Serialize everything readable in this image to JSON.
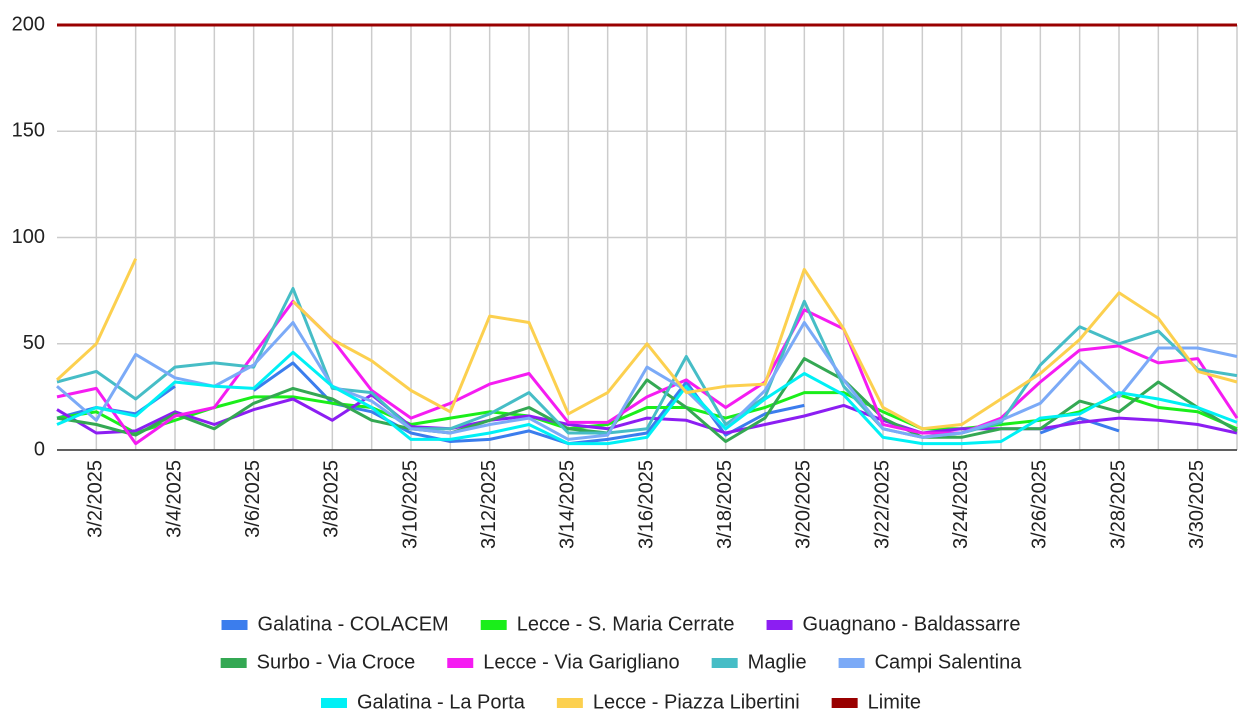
{
  "chart_data": {
    "type": "line",
    "categories": [
      null,
      "3/2/2025",
      null,
      "3/4/2025",
      null,
      "3/6/2025",
      null,
      "3/8/2025",
      null,
      "3/10/2025",
      null,
      "3/12/2025",
      null,
      "3/14/2025",
      null,
      "3/16/2025",
      null,
      "3/18/2025",
      null,
      "3/20/2025",
      null,
      "3/22/2025",
      null,
      "3/24/2025",
      null,
      "3/26/2025",
      null,
      "3/28/2025",
      null,
      "3/30/2025",
      null
    ],
    "ylim": [
      0,
      200
    ],
    "yticks": [
      0,
      50,
      100,
      150,
      200
    ],
    "grid": true,
    "series": [
      {
        "name": "Galatina - COLACEM",
        "color": "#3b7ded",
        "values": [
          15,
          20,
          17,
          30,
          null,
          28,
          41,
          22,
          18,
          8,
          4,
          5,
          9,
          3,
          5,
          8,
          32,
          7,
          17,
          21,
          null,
          null,
          null,
          null,
          null,
          8,
          15,
          9,
          null,
          null,
          null
        ]
      },
      {
        "name": "Lecce - S. Maria Cerrate",
        "color": "#1aee1a",
        "values": [
          15,
          18,
          8,
          14,
          20,
          25,
          25,
          22,
          20,
          12,
          15,
          18,
          16,
          10,
          12,
          20,
          20,
          15,
          20,
          27,
          27,
          18,
          10,
          10,
          12,
          14,
          18,
          26,
          20,
          18,
          10
        ]
      },
      {
        "name": "Guagnano - Baldassarre",
        "color": "#8c1ef2",
        "values": [
          19,
          8,
          9,
          18,
          12,
          19,
          24,
          14,
          26,
          11,
          10,
          14,
          16,
          12,
          10,
          15,
          14,
          8,
          12,
          16,
          21,
          14,
          8,
          10,
          10,
          10,
          13,
          15,
          14,
          12,
          8
        ]
      },
      {
        "name": "Surbo - Via Croce",
        "color": "#34a853",
        "values": [
          15,
          12,
          7,
          17,
          10,
          22,
          29,
          24,
          14,
          10,
          8,
          14,
          20,
          10,
          8,
          33,
          20,
          4,
          15,
          43,
          33,
          15,
          6,
          6,
          10,
          10,
          23,
          18,
          32,
          20,
          9
        ]
      },
      {
        "name": "Lecce - Via Garigliano",
        "color": "#f51cf2",
        "values": [
          25,
          29,
          3,
          16,
          20,
          45,
          70,
          52,
          28,
          15,
          22,
          31,
          36,
          13,
          13,
          25,
          33,
          20,
          32,
          66,
          57,
          12,
          8,
          8,
          15,
          32,
          47,
          49,
          41,
          43,
          15
        ]
      },
      {
        "name": "Maglie",
        "color": "#46bdc6",
        "values": [
          32,
          37,
          24,
          39,
          41,
          39,
          76,
          29,
          27,
          10,
          10,
          17,
          27,
          8,
          8,
          10,
          44,
          12,
          25,
          70,
          30,
          10,
          6,
          8,
          13,
          40,
          58,
          50,
          56,
          38,
          35
        ]
      },
      {
        "name": "Campi Salentina",
        "color": "#7baaf7",
        "values": [
          30,
          14,
          45,
          34,
          30,
          40,
          60,
          30,
          23,
          10,
          8,
          12,
          15,
          5,
          7,
          39,
          28,
          10,
          28,
          60,
          33,
          10,
          6,
          8,
          14,
          22,
          42,
          25,
          48,
          48,
          44
        ]
      },
      {
        "name": "Galatina - La Porta",
        "color": "#00f0f5",
        "values": [
          12,
          20,
          16,
          32,
          30,
          29,
          46,
          30,
          20,
          5,
          5,
          8,
          12,
          3,
          3,
          6,
          30,
          10,
          24,
          36,
          26,
          6,
          3,
          3,
          4,
          15,
          17,
          27,
          24,
          20,
          13
        ]
      },
      {
        "name": "Lecce - Piazza Libertini",
        "color": "#fcd04f",
        "values": [
          33,
          50,
          90,
          null,
          null,
          null,
          70,
          52,
          42,
          28,
          18,
          63,
          60,
          17,
          27,
          50,
          27,
          30,
          31,
          85,
          57,
          20,
          10,
          12,
          24,
          36,
          52,
          74,
          62,
          37,
          32
        ]
      },
      {
        "name": "Limite",
        "color": "#990000",
        "values": [
          200,
          200,
          200,
          200,
          200,
          200,
          200,
          200,
          200,
          200,
          200,
          200,
          200,
          200,
          200,
          200,
          200,
          200,
          200,
          200,
          200,
          200,
          200,
          200,
          200,
          200,
          200,
          200,
          200,
          200,
          200
        ]
      }
    ]
  }
}
